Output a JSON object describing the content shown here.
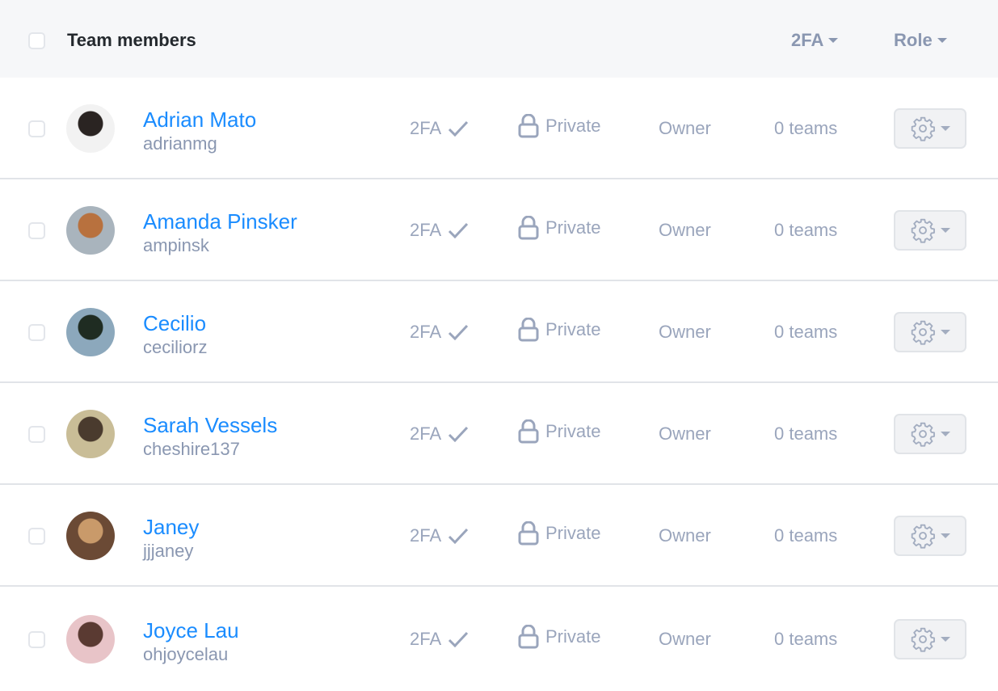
{
  "header": {
    "title": "Team members",
    "sort_2fa": "2FA",
    "sort_role": "Role"
  },
  "members": [
    {
      "name": "Adrian Mato",
      "username": "adrianmg",
      "twofa": "2FA",
      "visibility": "Private",
      "role": "Owner",
      "teams": "0 teams",
      "avatar_colors": [
        "#f2f2f2",
        "#2a2422"
      ]
    },
    {
      "name": "Amanda Pinsker",
      "username": "ampinsk",
      "twofa": "2FA",
      "visibility": "Private",
      "role": "Owner",
      "teams": "0 teams",
      "avatar_colors": [
        "#a9b4bd",
        "#b8713e"
      ]
    },
    {
      "name": "Cecilio",
      "username": "ceciliorz",
      "twofa": "2FA",
      "visibility": "Private",
      "role": "Owner",
      "teams": "0 teams",
      "avatar_colors": [
        "#8ca8bc",
        "#1f2c22"
      ]
    },
    {
      "name": "Sarah Vessels",
      "username": "cheshire137",
      "twofa": "2FA",
      "visibility": "Private",
      "role": "Owner",
      "teams": "0 teams",
      "avatar_colors": [
        "#c9bd97",
        "#4a3b2e"
      ]
    },
    {
      "name": "Janey",
      "username": "jjjaney",
      "twofa": "2FA",
      "visibility": "Private",
      "role": "Owner",
      "teams": "0 teams",
      "avatar_colors": [
        "#6b4a35",
        "#c99a6a"
      ]
    },
    {
      "name": "Joyce Lau",
      "username": "ohjoycelau",
      "twofa": "2FA",
      "visibility": "Private",
      "role": "Owner",
      "teams": "0 teams",
      "avatar_colors": [
        "#e8c4c8",
        "#5a3a32"
      ]
    }
  ]
}
